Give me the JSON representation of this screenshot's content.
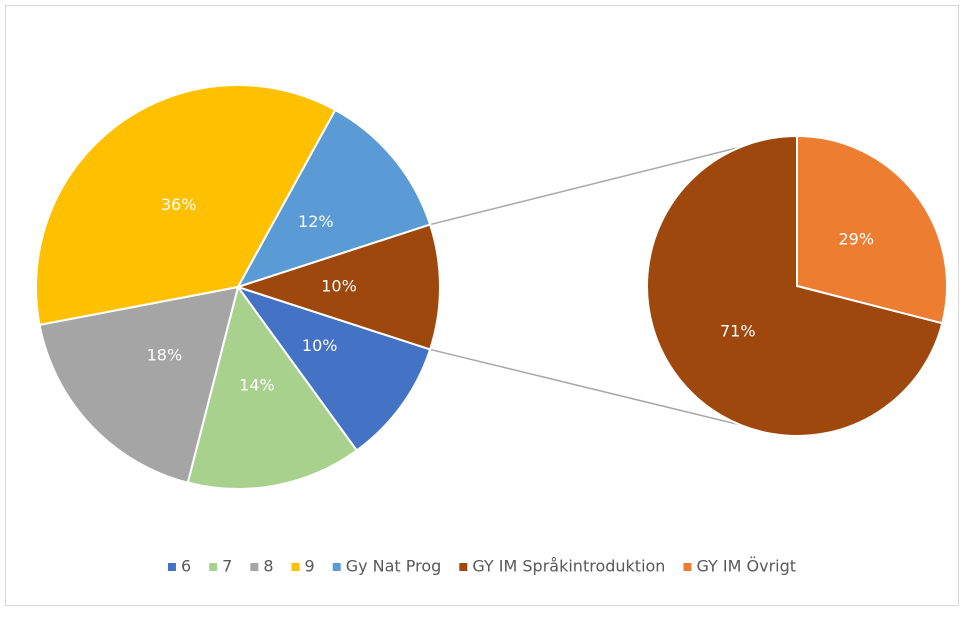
{
  "chart_data": {
    "type": "pie-of-pie",
    "categories": [
      "6",
      "7",
      "8",
      "9",
      "Gy Nat Prog"
    ],
    "values": [
      10,
      14,
      18,
      36,
      12
    ],
    "value_labels": [
      "10%",
      "14%",
      "18%",
      "36%",
      "12%"
    ],
    "colors": [
      "#4472c4",
      "#a9d18e",
      "#a5a5a5",
      "#ffc000",
      "#5b9bd5"
    ],
    "other_value": 10,
    "other_value_label": "10%",
    "other_color": "#9e480e",
    "secondary": {
      "categories": [
        "GY IM Språkintroduktion",
        "GY IM Övrigt"
      ],
      "values": [
        71,
        29
      ],
      "value_labels": [
        "71%",
        "29%"
      ],
      "colors": [
        "#9e480e",
        "#ed7d31"
      ]
    },
    "legend": "bottom"
  }
}
